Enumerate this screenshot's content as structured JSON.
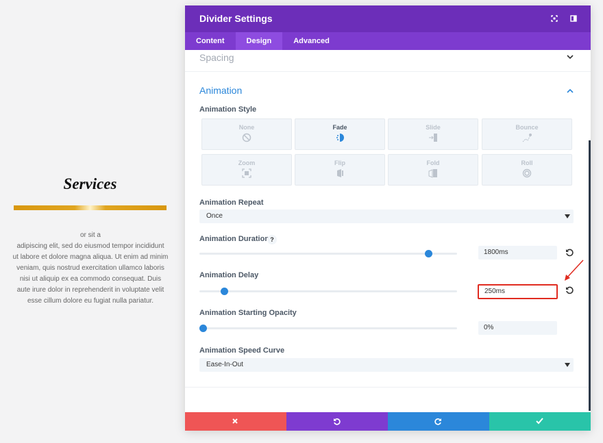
{
  "background": {
    "heading": "Services",
    "paragraph_lines": [
      "or sit a",
      "adipiscing elit, sed do eiusmod tempor incididunt",
      "ut labore et dolore magna aliqua. Ut enim ad minim",
      "veniam, quis nostrud exercitation ullamco laboris",
      "nisi ut aliquip ex ea commodo consequat. Duis",
      "aute irure dolor in reprehenderit in voluptate velit",
      "esse cillum dolore eu fugiat nulla pariatur."
    ]
  },
  "modal": {
    "title": "Divider Settings",
    "tabs": [
      "Content",
      "Design",
      "Advanced"
    ],
    "sections": {
      "spacing": "Spacing",
      "animation": "Animation"
    },
    "animation_style": {
      "label": "Animation Style",
      "options": [
        "None",
        "Fade",
        "Slide",
        "Bounce",
        "Zoom",
        "Flip",
        "Fold",
        "Roll"
      ]
    },
    "animation_repeat": {
      "label": "Animation Repeat",
      "value": "Once"
    },
    "animation_duration": {
      "label": "Animation Duration",
      "help": "?",
      "value": "1800ms"
    },
    "animation_delay": {
      "label": "Animation Delay",
      "value": "250ms"
    },
    "animation_starting_opacity": {
      "label": "Animation Starting Opacity",
      "value": "0%"
    },
    "animation_speed_curve": {
      "label": "Animation Speed Curve",
      "value": "Ease-In-Out"
    }
  }
}
